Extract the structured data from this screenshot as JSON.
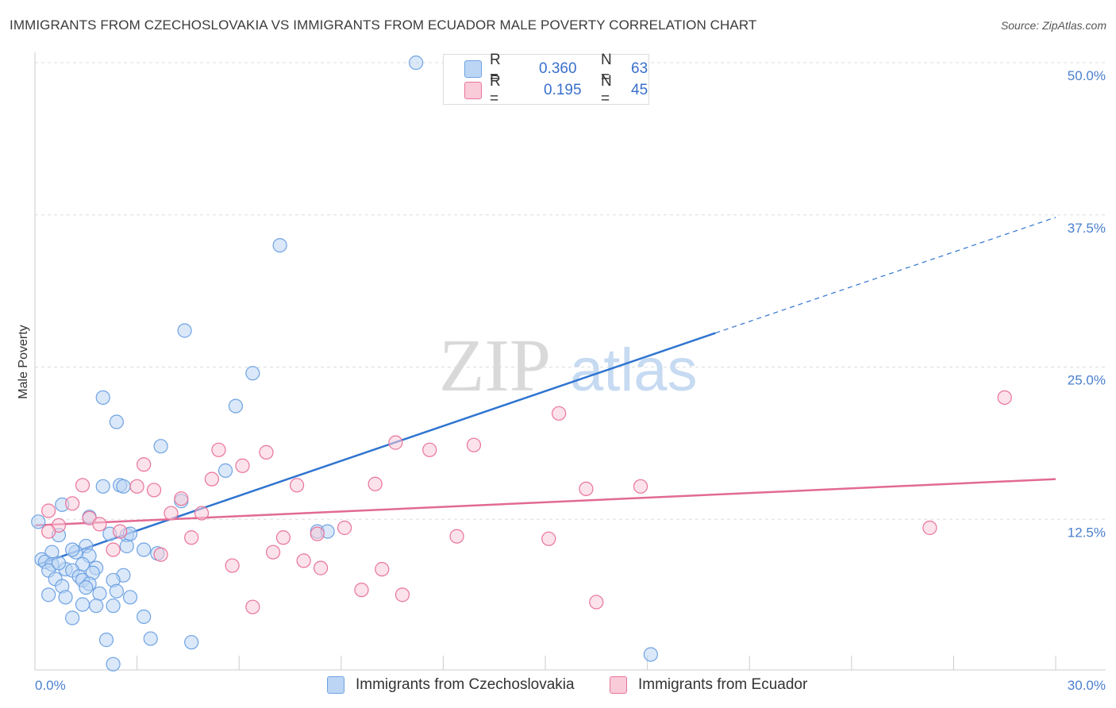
{
  "title": "IMMIGRANTS FROM CZECHOSLOVAKIA VS IMMIGRANTS FROM ECUADOR MALE POVERTY CORRELATION CHART",
  "source": "Source: ZipAtlas.com",
  "watermark": {
    "zip": "ZIP",
    "atlas": "atlas"
  },
  "legend": {
    "rows": [
      {
        "r_label": "R =",
        "r_value": "0.360",
        "n_label": "N =",
        "n_value": "63",
        "color": "#a9c8f0"
      },
      {
        "r_label": "R =",
        "r_value": "0.195",
        "n_label": "N =",
        "n_value": "45",
        "color": "#f7bccd"
      }
    ]
  },
  "bottom_legend": [
    {
      "label": "Immigrants from Czechoslovakia",
      "color": "#a9c8f0"
    },
    {
      "label": "Immigrants from Ecuador",
      "color": "#f7bccd"
    }
  ],
  "chart_data": {
    "type": "scatter",
    "title": "IMMIGRANTS FROM CZECHOSLOVAKIA VS IMMIGRANTS FROM ECUADOR MALE POVERTY CORRELATION CHART",
    "xlabel": "",
    "ylabel": "Male Poverty",
    "xlim": [
      0,
      30
    ],
    "ylim": [
      0,
      50
    ],
    "x_tick_labels": [
      "0.0%",
      "30.0%"
    ],
    "y_tick_labels": [
      {
        "value": 12.5,
        "label": "12.5%"
      },
      {
        "value": 25.0,
        "label": "25.0%"
      },
      {
        "value": 37.5,
        "label": "37.5%"
      },
      {
        "value": 50.0,
        "label": "50.0%"
      }
    ],
    "grid": true,
    "legend_position": "top-center",
    "series": [
      {
        "name": "Immigrants from Czechoslovakia",
        "color": "#6fa3e3",
        "fill": "#bcd5f4",
        "trend": {
          "x0": 0.1,
          "y0": 8.8,
          "x1": 20.0,
          "y1": 27.8,
          "dash_to_x": 30.0,
          "dash_to_y": 37.3
        },
        "points": [
          [
            11.2,
            50.0
          ],
          [
            7.2,
            35.0
          ],
          [
            4.4,
            28.0
          ],
          [
            6.4,
            24.5
          ],
          [
            5.9,
            21.8
          ],
          [
            2.0,
            22.5
          ],
          [
            2.4,
            20.5
          ],
          [
            3.7,
            18.5
          ],
          [
            5.6,
            16.5
          ],
          [
            2.0,
            15.2
          ],
          [
            2.5,
            15.3
          ],
          [
            2.6,
            15.2
          ],
          [
            0.8,
            13.7
          ],
          [
            4.3,
            14.0
          ],
          [
            1.6,
            12.7
          ],
          [
            0.1,
            12.3
          ],
          [
            0.7,
            11.2
          ],
          [
            2.2,
            11.3
          ],
          [
            2.7,
            11.2
          ],
          [
            8.3,
            11.5
          ],
          [
            8.6,
            11.5
          ],
          [
            1.5,
            10.3
          ],
          [
            2.7,
            10.3
          ],
          [
            3.2,
            10.0
          ],
          [
            0.5,
            9.8
          ],
          [
            1.2,
            9.8
          ],
          [
            3.6,
            9.7
          ],
          [
            1.6,
            9.5
          ],
          [
            0.2,
            9.2
          ],
          [
            0.3,
            9.0
          ],
          [
            0.5,
            8.8
          ],
          [
            1.4,
            8.8
          ],
          [
            1.8,
            8.5
          ],
          [
            0.4,
            8.3
          ],
          [
            0.9,
            8.4
          ],
          [
            1.1,
            8.3
          ],
          [
            1.7,
            8.1
          ],
          [
            1.3,
            7.8
          ],
          [
            2.6,
            7.9
          ],
          [
            0.6,
            7.6
          ],
          [
            1.4,
            7.5
          ],
          [
            2.3,
            7.5
          ],
          [
            1.6,
            7.2
          ],
          [
            0.8,
            7.0
          ],
          [
            1.5,
            6.9
          ],
          [
            2.4,
            6.6
          ],
          [
            0.4,
            6.3
          ],
          [
            0.9,
            6.1
          ],
          [
            1.9,
            6.4
          ],
          [
            2.8,
            6.1
          ],
          [
            1.4,
            5.5
          ],
          [
            1.8,
            5.4
          ],
          [
            2.3,
            5.4
          ],
          [
            3.2,
            4.5
          ],
          [
            1.1,
            4.4
          ],
          [
            2.1,
            2.6
          ],
          [
            3.4,
            2.7
          ],
          [
            4.6,
            2.4
          ],
          [
            2.3,
            0.6
          ],
          [
            18.1,
            1.4
          ],
          [
            1.1,
            10.0
          ],
          [
            2.8,
            11.3
          ],
          [
            0.7,
            8.9
          ]
        ]
      },
      {
        "name": "Immigrants from Ecuador",
        "color": "#e9749a",
        "fill": "#f9cbd9",
        "trend": {
          "x0": 0.0,
          "y0": 12.0,
          "x1": 30.0,
          "y1": 15.8
        },
        "points": [
          [
            28.5,
            22.5
          ],
          [
            15.4,
            21.2
          ],
          [
            10.6,
            18.8
          ],
          [
            11.6,
            18.2
          ],
          [
            12.9,
            18.6
          ],
          [
            5.4,
            18.2
          ],
          [
            6.8,
            18.0
          ],
          [
            3.2,
            17.0
          ],
          [
            6.1,
            16.9
          ],
          [
            5.2,
            15.8
          ],
          [
            1.4,
            15.3
          ],
          [
            3.0,
            15.2
          ],
          [
            7.7,
            15.3
          ],
          [
            10.0,
            15.4
          ],
          [
            16.2,
            15.0
          ],
          [
            17.8,
            15.2
          ],
          [
            3.5,
            14.9
          ],
          [
            4.3,
            14.2
          ],
          [
            1.1,
            13.8
          ],
          [
            0.4,
            13.2
          ],
          [
            4.0,
            13.0
          ],
          [
            4.9,
            13.0
          ],
          [
            1.6,
            12.6
          ],
          [
            1.9,
            12.1
          ],
          [
            0.7,
            12.0
          ],
          [
            9.1,
            11.8
          ],
          [
            0.4,
            11.5
          ],
          [
            2.5,
            11.5
          ],
          [
            26.3,
            11.8
          ],
          [
            8.3,
            11.3
          ],
          [
            7.3,
            11.0
          ],
          [
            4.6,
            11.0
          ],
          [
            12.4,
            11.1
          ],
          [
            15.1,
            10.9
          ],
          [
            2.3,
            10.0
          ],
          [
            7.0,
            9.8
          ],
          [
            3.7,
            9.6
          ],
          [
            7.9,
            9.1
          ],
          [
            5.8,
            8.7
          ],
          [
            10.2,
            8.4
          ],
          [
            8.4,
            8.5
          ],
          [
            9.6,
            6.7
          ],
          [
            10.8,
            6.3
          ],
          [
            16.5,
            5.7
          ],
          [
            6.4,
            5.3
          ]
        ]
      }
    ]
  }
}
